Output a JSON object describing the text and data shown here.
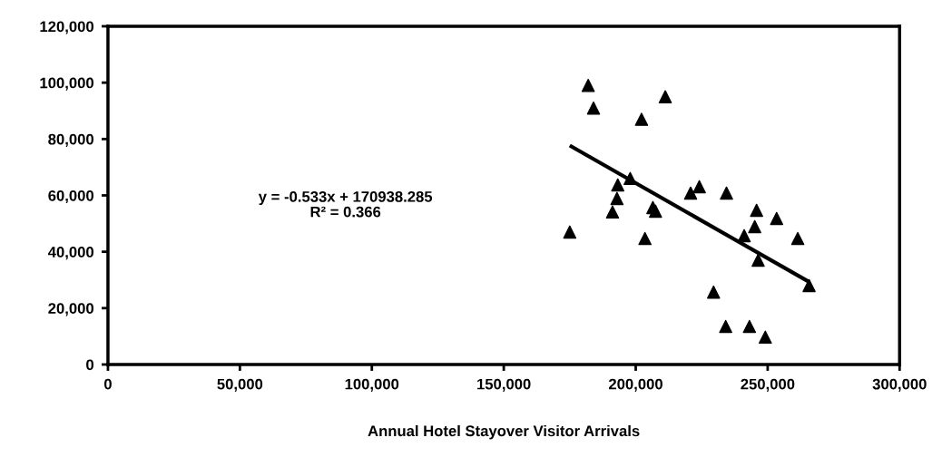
{
  "chart_data": {
    "type": "scatter",
    "xlabel": "Annual Hotel Stayover Visitor Arrivals",
    "annotations": [
      "y = -0.533x + 170938.285\nR² = 0.366"
    ],
    "grid": false,
    "legend": false,
    "xlim": [
      0,
      300000
    ],
    "ylim": [
      0,
      120000
    ],
    "xticks": [
      0,
      {
        "value": 50000,
        "label": "50,000"
      },
      {
        "value": 100000,
        "label": "100,000"
      },
      {
        "value": 150000,
        "label": "150,000"
      },
      {
        "value": 200000,
        "label": "200,000"
      },
      {
        "value": 250000,
        "label": "250,000"
      },
      {
        "value": 300000,
        "label": "300,000"
      }
    ],
    "yticks": [
      0,
      {
        "value": 20000,
        "label": "20,000"
      },
      {
        "value": 40000,
        "label": "40,000"
      },
      {
        "value": 60000,
        "label": "60,000"
      },
      {
        "value": 80000,
        "label": "80,000"
      },
      {
        "value": 100000,
        "label": "100,000"
      },
      {
        "value": 120000,
        "label": "120,000"
      }
    ],
    "series": [
      {
        "marker": "triangle",
        "color": "#000000",
        "x": [
          175000,
          182000,
          184000,
          211200,
          202200,
          197900,
          193200,
          192900,
          191200,
          203500,
          206500,
          207500,
          220800,
          224100,
          234400,
          245800,
          253400,
          245100,
          241100,
          261400,
          246400,
          265700,
          229500,
          234100,
          243100,
          249100
        ],
        "values": [
          47000,
          99000,
          91000,
          95000,
          87000,
          66000,
          63700,
          58900,
          54100,
          44700,
          55700,
          54400,
          60800,
          63100,
          60800,
          54700,
          51800,
          48900,
          45700,
          44700,
          37000,
          28000,
          25700,
          13500,
          13500,
          9700
        ]
      },
      {
        "type": "line",
        "marker": "none",
        "color": "#000000",
        "x": [
          175000,
          265700
        ],
        "values": [
          77700,
          29300
        ]
      }
    ]
  }
}
